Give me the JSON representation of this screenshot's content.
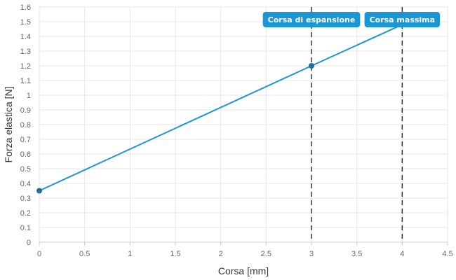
{
  "chart_data": {
    "type": "line",
    "xlabel": "Corsa [mm]",
    "ylabel": "Forza elastica [N]",
    "xlim": [
      0,
      4.5
    ],
    "ylim": [
      0,
      1.6
    ],
    "x_ticks": [
      0,
      0.5,
      1,
      1.5,
      2,
      2.5,
      3,
      3.5,
      4,
      4.5
    ],
    "y_ticks": [
      0,
      0.1,
      0.2,
      0.3,
      0.4,
      0.5,
      0.6,
      0.7,
      0.8,
      0.9,
      1,
      1.1,
      1.2,
      1.3,
      1.4,
      1.5,
      1.6
    ],
    "grid": true,
    "series": [
      {
        "color": "#1a96d4",
        "points": [
          {
            "x": 0,
            "y": 0.35
          },
          {
            "x": 3.0,
            "y": 1.2
          },
          {
            "x": 4.0,
            "y": 1.48
          }
        ],
        "markers_at": [
          0,
          3.0
        ]
      }
    ],
    "annotations": [
      {
        "label": "Corsa di espansione",
        "x": 3.0,
        "color": "#1a96d4"
      },
      {
        "label": "Corsa massima",
        "x": 4.0,
        "color": "#1a96d4"
      }
    ]
  }
}
